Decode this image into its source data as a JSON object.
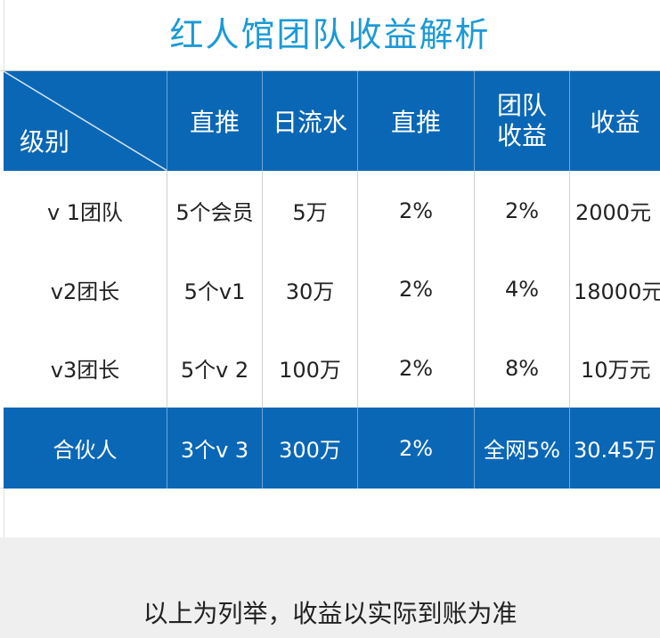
{
  "title": "红人馆团队收益解析",
  "table": {
    "corner_label": "级别",
    "headers": [
      "直推",
      "日流水",
      "直推",
      "团队\n收益",
      "收益"
    ],
    "rows": [
      [
        "v 1团队",
        "5个会员",
        "5万",
        "2%",
        "2%",
        "2000元"
      ],
      [
        "v2团长",
        "5个v1",
        "30万",
        "2%",
        "4%",
        "18000元"
      ],
      [
        "v3团长",
        "5个v 2",
        "100万",
        "2%",
        "8%",
        "10万元"
      ],
      [
        "合伙人",
        "3个v 3",
        "300万",
        "2%",
        "全网5%",
        "30.45万"
      ]
    ]
  },
  "note": "以上为列举，收益以实际到账为准",
  "colors": {
    "title": "#1a9ad6",
    "header_bg": "#0a67b5",
    "note_band": "#efefef"
  }
}
